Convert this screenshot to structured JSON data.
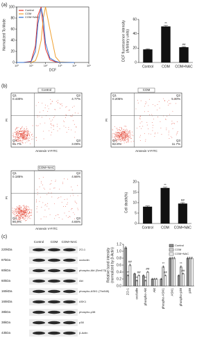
{
  "panel_labels": [
    "(a)",
    "(b)",
    "(c)"
  ],
  "blot": {
    "columns": [
      "Control",
      "COM",
      "COM+NAC"
    ],
    "rows": [
      {
        "size": "220kDa",
        "name": "ZO-1"
      },
      {
        "size": "87kDa",
        "name": "occludin"
      },
      {
        "size": "60kDa",
        "name": "phospho-Akt (Ser473)"
      },
      {
        "size": "60kDa",
        "name": "Akt"
      },
      {
        "size": "165kDa",
        "name": "phospho-ASK1 (Thr845)"
      },
      {
        "size": "165kDa",
        "name": "ASK1"
      },
      {
        "size": "38kDa",
        "name": "phospho-p38"
      },
      {
        "size": "38kDa",
        "name": "p38"
      },
      {
        "size": "43kDa",
        "name": "β-Actin"
      }
    ]
  },
  "chart_data": [
    {
      "type": "line",
      "xlabel": "DCF",
      "ylabel": [
        "Normalized To Mode"
      ],
      "log_x": true,
      "x": [
        1,
        3,
        10,
        20,
        30,
        50,
        70,
        100,
        200,
        500,
        1000,
        10000
      ],
      "xlim": [
        1,
        100000
      ],
      "xticks": [
        {
          "value": 1,
          "label": "10⁰"
        },
        {
          "value": 10,
          "label": "10¹"
        },
        {
          "value": 100,
          "label": "10²"
        },
        {
          "value": 1000,
          "label": "10³"
        },
        {
          "value": 10000,
          "label": "10⁴"
        },
        {
          "value": 100000,
          "label": "10⁵"
        }
      ],
      "ylim": [
        0,
        100
      ],
      "yticks": [
        0,
        20,
        40,
        60,
        80,
        100
      ],
      "series": [
        {
          "name": "Control",
          "color": "#e8302a",
          "values": [
            0,
            0,
            2,
            30,
            85,
            100,
            60,
            25,
            5,
            1,
            0,
            0
          ]
        },
        {
          "name": "COM",
          "color": "#f0a030",
          "values": [
            0,
            0,
            0,
            3,
            15,
            40,
            80,
            100,
            60,
            10,
            1,
            0
          ]
        },
        {
          "name": "COM+NAC",
          "color": "#2f6fd0",
          "values": [
            0,
            0,
            1,
            20,
            70,
            98,
            80,
            35,
            8,
            2,
            0,
            0
          ]
        }
      ]
    },
    {
      "type": "bar",
      "ylabel": [
        "DCF fluorescence intensity",
        "(Arbitrary units)"
      ],
      "categories": [
        "Control",
        "COM",
        "COM+NAC"
      ],
      "values": [
        18,
        50,
        21
      ],
      "errors": [
        1,
        1.5,
        1
      ],
      "significance": [
        null,
        "**",
        "##"
      ],
      "color": "#111111",
      "ylim": [
        0,
        60
      ],
      "yticks": [
        0,
        20,
        40,
        60
      ]
    },
    {
      "type": "dotplot",
      "title": "Control",
      "xlabel": "Annexin V-FITC",
      "ylabel": "PI",
      "quadrants": [
        "Q1",
        "Q2",
        "Q3",
        "Q4"
      ],
      "values": [
        0.43,
        4.77,
        3.09,
        91.7
      ],
      "value_labels": [
        "0.430%",
        "4.77%",
        "3.09%",
        "91.7%"
      ],
      "color": "#e0301e"
    },
    {
      "type": "dotplot",
      "title": "COM",
      "xlabel": "Annexin V-FITC",
      "ylabel": "PI",
      "quadrants": [
        "Q1",
        "Q2",
        "Q3",
        "Q4"
      ],
      "values": [
        0.205,
        5.3,
        11.7,
        82.8
      ],
      "value_labels": [
        "0.205%",
        "5.30%",
        "11.7%",
        "82.8%"
      ],
      "color": "#e0301e"
    },
    {
      "type": "dotplot",
      "title": "COM+NAC",
      "xlabel": "Annexin V-FITC",
      "ylabel": "PI",
      "quadrants": [
        "Q1",
        "Q2",
        "Q3",
        "Q4"
      ],
      "values": [
        0.185,
        4.66,
        4.65,
        90.9
      ],
      "value_labels": [
        "0.185%",
        "4.66%",
        "4.65%",
        "90.9%"
      ],
      "color": "#e0301e"
    },
    {
      "type": "bar",
      "ylabel": [
        "Cell death(%)"
      ],
      "categories": [
        "Control",
        "COM",
        "COM+NAC"
      ],
      "values": [
        8,
        17,
        9.5
      ],
      "errors": [
        0.4,
        0.4,
        0.5
      ],
      "significance": [
        null,
        "**",
        "##"
      ],
      "color": "#111111",
      "ylim": [
        0,
        20
      ],
      "yticks": [
        0,
        5,
        10,
        15,
        20
      ]
    },
    {
      "type": "bar",
      "ylabel": [
        "Relative band intensity",
        "(normalized by β-Actin)"
      ],
      "categories": [
        "ZO-1",
        "occludin",
        "phospho-Akt",
        "Akt",
        "phospho-ASK1",
        "ASK1",
        "phospho-p38",
        "p38"
      ],
      "ylim": [
        0,
        1.2
      ],
      "yticks": [
        {
          "value": 0,
          "label": "0.0"
        },
        {
          "value": 0.2,
          "label": "0.2"
        },
        {
          "value": 0.4,
          "label": "0.4"
        },
        {
          "value": 0.6,
          "label": "0.6"
        },
        {
          "value": 0.8,
          "label": "0.8"
        },
        {
          "value": 1,
          "label": "1.0"
        },
        {
          "value": 1.2,
          "label": "1.2"
        }
      ],
      "series": [
        {
          "name": "Control",
          "color": "#8a8a8a",
          "values": [
            1.1,
            0.35,
            0.3,
            0.2,
            0.2,
            0.8,
            0.3,
            0.8
          ],
          "errors": [
            0.03,
            0.02,
            0.02,
            0.02,
            0.02,
            0.03,
            0.02,
            0.03
          ],
          "significance": [
            null,
            null,
            null,
            null,
            null,
            null,
            null,
            null
          ]
        },
        {
          "name": "COM",
          "color": "#d4d4d4",
          "values": [
            0.3,
            0.15,
            0.15,
            0.2,
            0.55,
            0.8,
            0.55,
            0.8
          ],
          "errors": [
            0.02,
            0.02,
            0.02,
            0.02,
            0.03,
            0.03,
            0.03,
            0.03
          ],
          "significance": [
            "**",
            "**",
            "**",
            null,
            "**",
            null,
            "**",
            null
          ]
        },
        {
          "name": "COM+NAC",
          "color": "#f4f4f4",
          "values": [
            0.6,
            0.3,
            0.4,
            0.2,
            0.3,
            0.8,
            0.35,
            0.8
          ],
          "errors": [
            0.03,
            0.02,
            0.02,
            0.02,
            0.02,
            0.03,
            0.02,
            0.03
          ],
          "significance": [
            "##",
            "##",
            "##",
            null,
            "##",
            null,
            "##",
            null
          ]
        }
      ]
    }
  ]
}
